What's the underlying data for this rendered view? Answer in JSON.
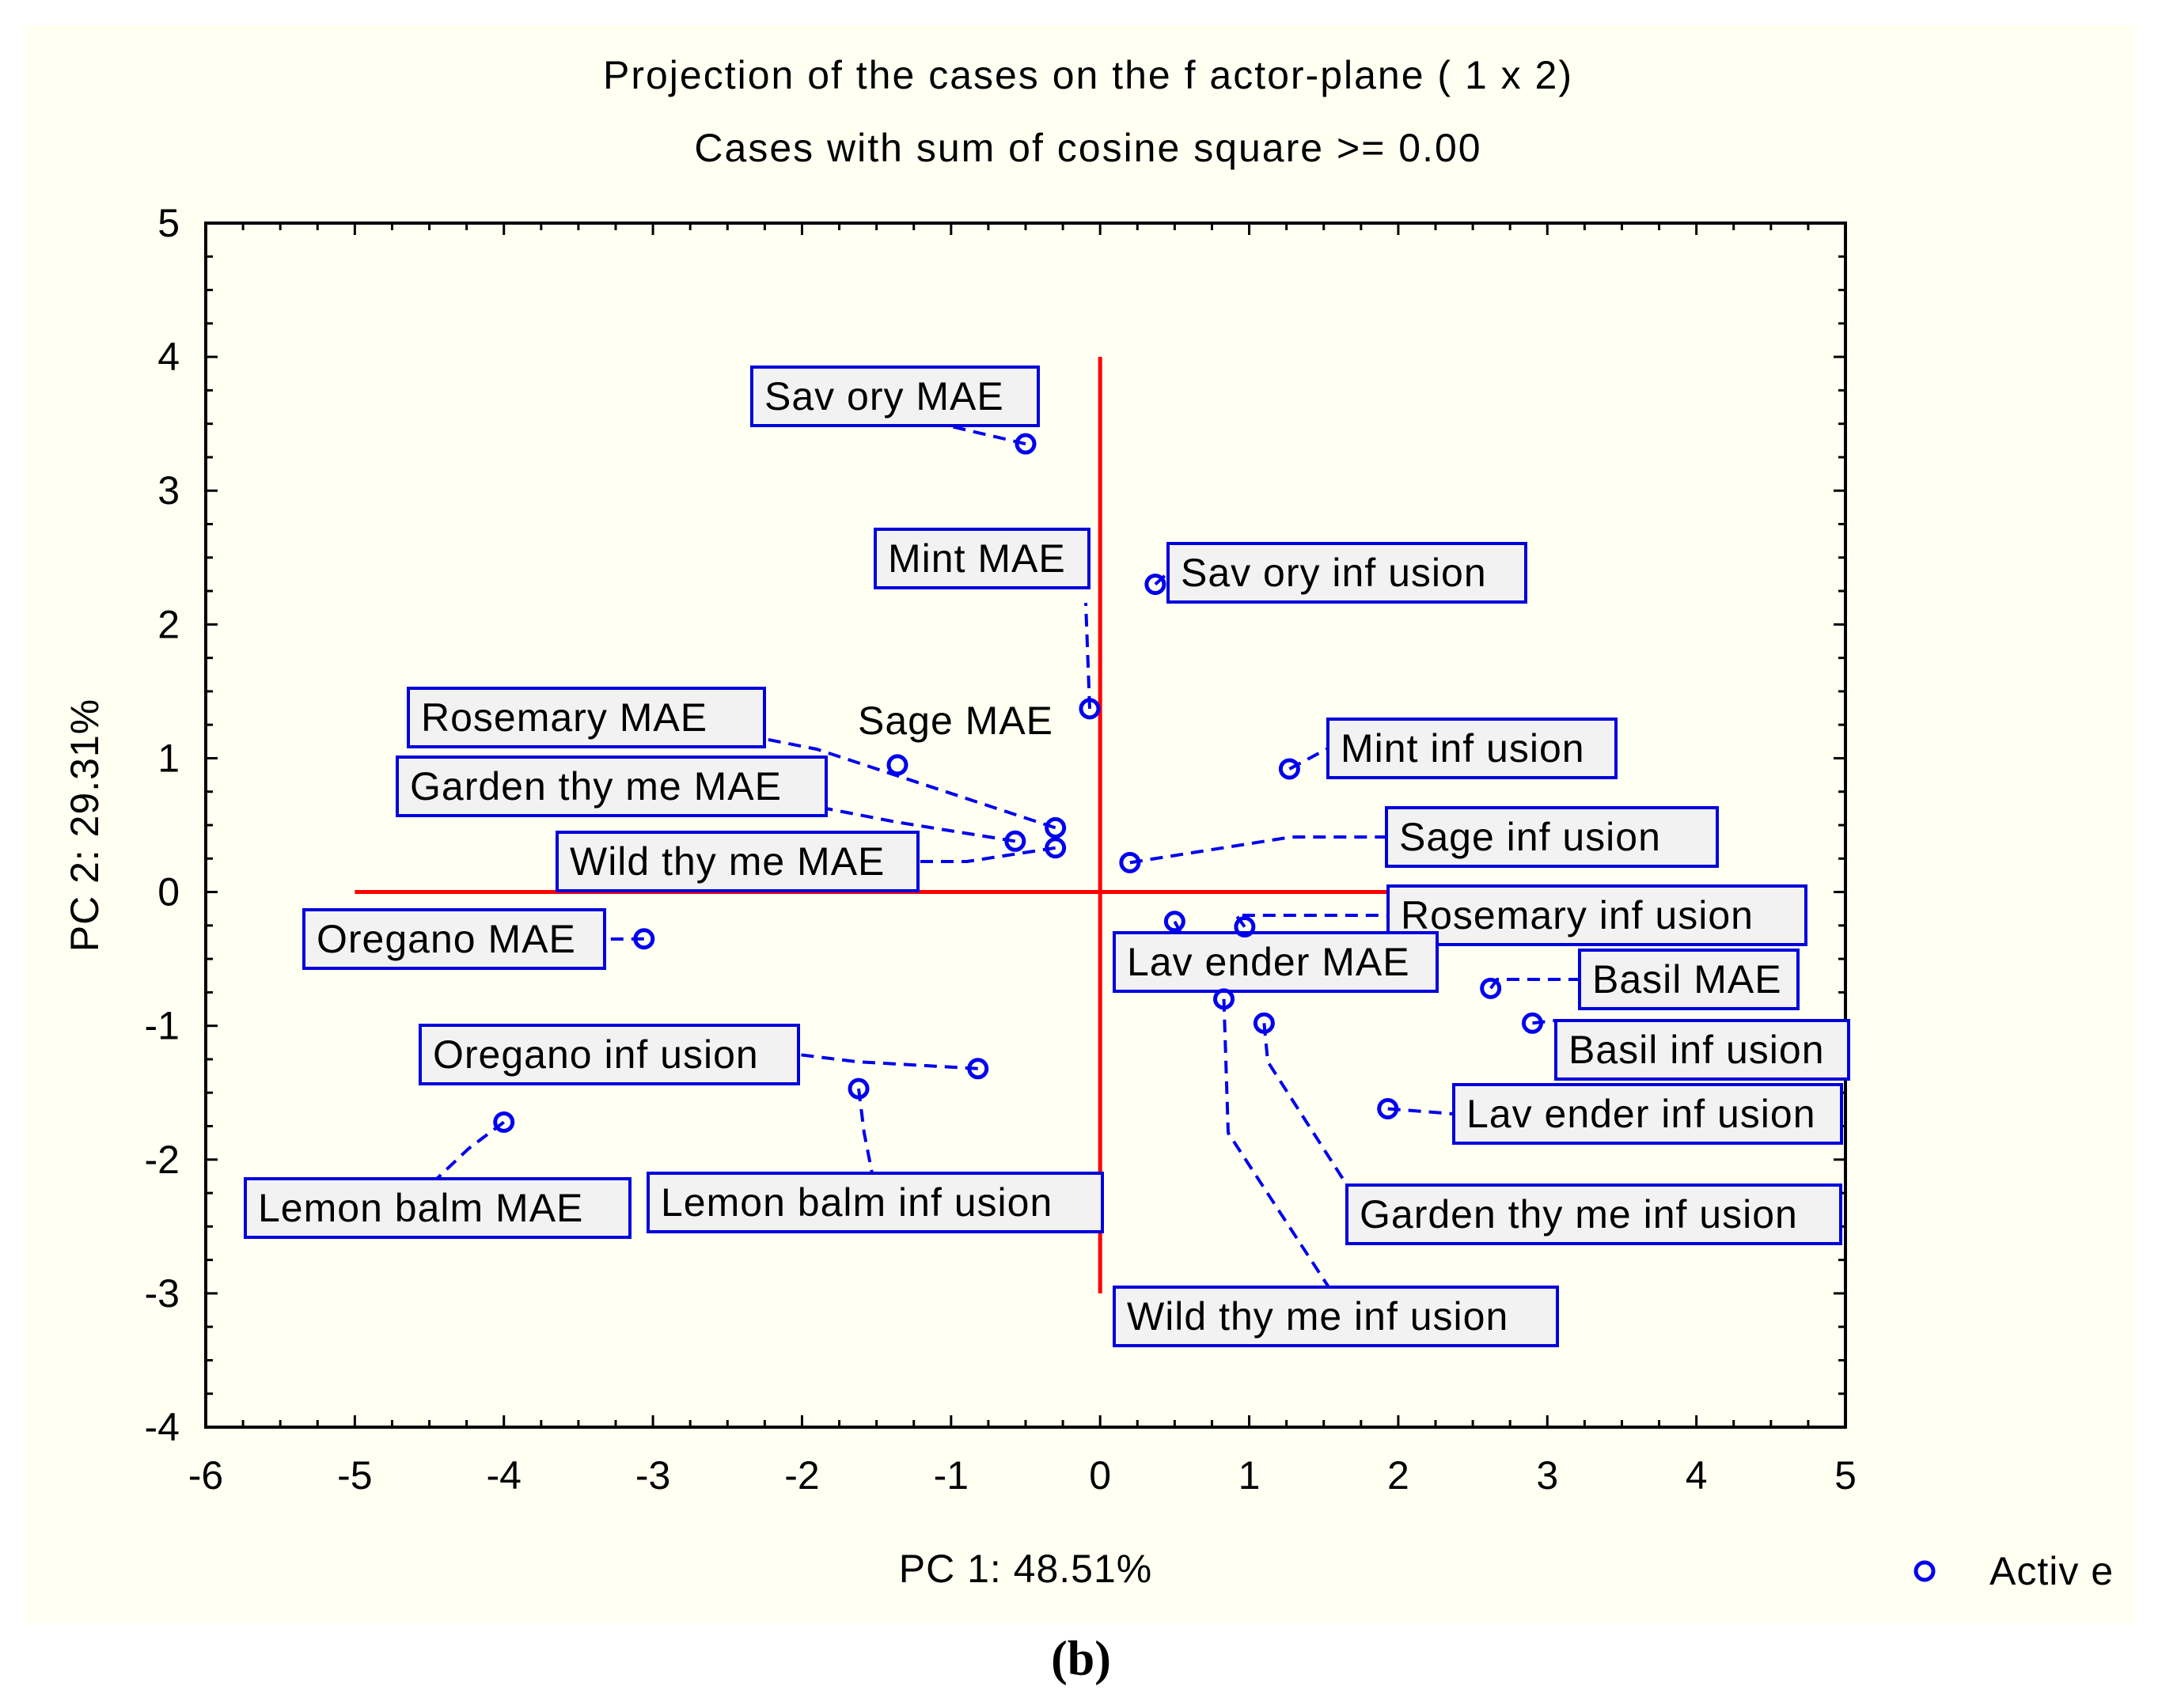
{
  "chart_data": {
    "type": "scatter",
    "title": "Projection of the cases on the f actor-plane (  1 x    2)",
    "subtitle": "Cases with sum of cosine square >=  0.00",
    "xlabel": "PC 1: 48.51%",
    "ylabel": "PC 2: 29.31%",
    "xlim": [
      -6,
      5
    ],
    "ylim": [
      -4,
      5
    ],
    "xticks": [
      -6,
      -5,
      -4,
      -3,
      -2,
      -1,
      0,
      1,
      2,
      3,
      4,
      5
    ],
    "yticks": [
      -4,
      -3,
      -2,
      -1,
      0,
      1,
      2,
      3,
      4,
      5
    ],
    "xtick_labels": [
      "-6",
      "-5",
      "-4",
      "-3",
      "-2",
      "-1",
      "0",
      "1",
      "2",
      "3",
      "4",
      "5"
    ],
    "ytick_labels": [
      "-4",
      "-3",
      "-2",
      "-1",
      "0",
      "1",
      "2",
      "3",
      "4",
      "5"
    ],
    "legend": {
      "entries": [
        "Active"
      ],
      "position": "bottom-right"
    },
    "colors": {
      "marker": "#0000ee",
      "axis_lines": "#ff0000",
      "panel_bg": "#fffff2",
      "label_bg": "#f2f2f2"
    },
    "series": [
      {
        "name": "Active",
        "points": [
          {
            "label": "Savory MAE",
            "x": -0.5,
            "y": 3.35
          },
          {
            "label": "Savory infusion",
            "x": 0.37,
            "y": 2.3
          },
          {
            "label": "Mint MAE",
            "x": -0.07,
            "y": 1.37
          },
          {
            "label": "Sage MAE",
            "x": -1.36,
            "y": 0.95
          },
          {
            "label": "Mint infusion",
            "x": 1.27,
            "y": 0.92
          },
          {
            "label": "Rosemary MAE",
            "x": -0.3,
            "y": 0.48
          },
          {
            "label": "Garden thyme MAE",
            "x": -0.57,
            "y": 0.38
          },
          {
            "label": "Wild thyme MAE",
            "x": -0.3,
            "y": 0.33
          },
          {
            "label": "Sage infusion",
            "x": 0.2,
            "y": 0.22
          },
          {
            "label": "Oregano MAE",
            "x": -3.06,
            "y": -0.35
          },
          {
            "label": "Rosemary infusion",
            "x": 0.97,
            "y": -0.26
          },
          {
            "label": "Lavender MAE",
            "x": 0.5,
            "y": -0.22
          },
          {
            "label": "Basil MAE",
            "x": 2.62,
            "y": -0.72
          },
          {
            "label": "Basil infusion",
            "x": 2.9,
            "y": -0.98
          },
          {
            "label": "Wild thyme infusion",
            "x": 0.83,
            "y": -0.8
          },
          {
            "label": "Garden thyme infusion",
            "x": 1.1,
            "y": -0.98
          },
          {
            "label": "Oregano infusion",
            "x": -0.82,
            "y": -1.32
          },
          {
            "label": "Lemon balm infusion",
            "x": -1.62,
            "y": -1.47
          },
          {
            "label": "Lavender infusion",
            "x": 1.93,
            "y": -1.62
          },
          {
            "label": "Lemon balm MAE",
            "x": -4.0,
            "y": -1.72
          }
        ]
      }
    ],
    "point_labels": [
      {
        "text": "Savory MAE",
        "display": "Sav ory  MAE",
        "boxed": true
      },
      {
        "text": "Savory infusion",
        "display": "Sav ory  inf usion",
        "boxed": true
      },
      {
        "text": "Mint MAE",
        "display": "Mint MAE",
        "boxed": true
      },
      {
        "text": "Sage MAE",
        "display": "Sage MAE",
        "boxed": false
      },
      {
        "text": "Mint infusion",
        "display": "Mint inf usion",
        "boxed": true
      },
      {
        "text": "Rosemary MAE",
        "display": "Rosemary  MAE",
        "boxed": true
      },
      {
        "text": "Garden thyme MAE",
        "display": "Garden thy me MAE",
        "boxed": true
      },
      {
        "text": "Wild thyme MAE",
        "display": "Wild thy me MAE",
        "boxed": true
      },
      {
        "text": "Sage infusion",
        "display": "Sage inf usion",
        "boxed": true
      },
      {
        "text": "Oregano MAE",
        "display": "Oregano MAE",
        "boxed": true
      },
      {
        "text": "Rosemary infusion",
        "display": "Rosemary  inf usion",
        "boxed": true
      },
      {
        "text": "Lavender MAE",
        "display": "Lav ender MAE",
        "boxed": true
      },
      {
        "text": "Basil MAE",
        "display": "Basil MAE",
        "boxed": true
      },
      {
        "text": "Basil infusion",
        "display": "Basil inf usion",
        "boxed": true
      },
      {
        "text": "Wild thyme infusion",
        "display": "Wild thy me inf usion",
        "boxed": true
      },
      {
        "text": "Garden thyme infusion",
        "display": "Garden thy me inf usion",
        "boxed": true
      },
      {
        "text": "Oregano infusion",
        "display": "Oregano inf usion",
        "boxed": true
      },
      {
        "text": "Lemon balm infusion",
        "display": "Lemon balm inf usion",
        "boxed": true
      },
      {
        "text": "Lavender infusion",
        "display": "Lav ender inf usion",
        "boxed": true
      },
      {
        "text": "Lemon balm MAE",
        "display": "Lemon balm MAE",
        "boxed": true
      }
    ],
    "legend_label": "Activ e"
  },
  "caption": "(b)"
}
